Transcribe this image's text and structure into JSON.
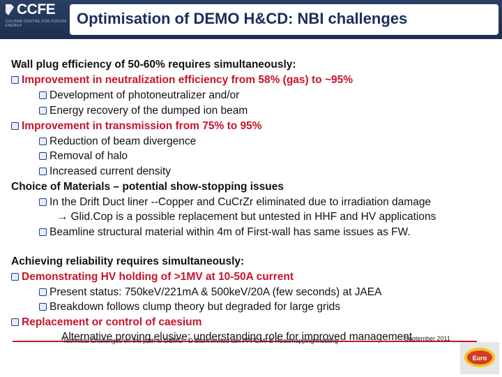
{
  "header": {
    "logo_text": "CCFE",
    "logo_sub": "CULHAM CENTRE FOR FUSION ENERGY",
    "title": "Optimisation of DEMO H&CD: NBI challenges"
  },
  "lines": [
    "Wall plug efficiency of 50-60% requires simultaneously:",
    "Improvement in neutralization efficiency from 58% (gas) to ~95%",
    "Development of photoneutralizer and/or",
    "Energy recovery of the dumped ion beam",
    "Improvement in transmission from 75% to 95%",
    "Reduction of beam divergence",
    "Removal of halo",
    "Increased current density",
    "Choice of Materials – potential show-stopping issues",
    "In the Drift Duct liner --Copper and CuCrZr eliminated due to irradiation damage",
    "Glid.Cop is a possible replacement but untested in HHF and HV applications",
    "Beamline structural material within 4m of First-wall has same issues as FW.",
    "Achieving reliability requires simultaneously:",
    "Demonstrating HV holding of >1MV at 10-50A current",
    "Present status: 750keV/221mA & 500keV/20A (few seconds) at JAEA",
    "Breakdown follows clump theory but degraded for large grids",
    "Replacement or control of caesium",
    "Alternative proving elusive; understanding role for improved management"
  ],
  "footer": {
    "text": "Technical Challenges on the path to DEMO - D Stork invited talk PPPL MFE Roadmapping meeting",
    "date": "September 2011",
    "logo_text": "Euro"
  }
}
